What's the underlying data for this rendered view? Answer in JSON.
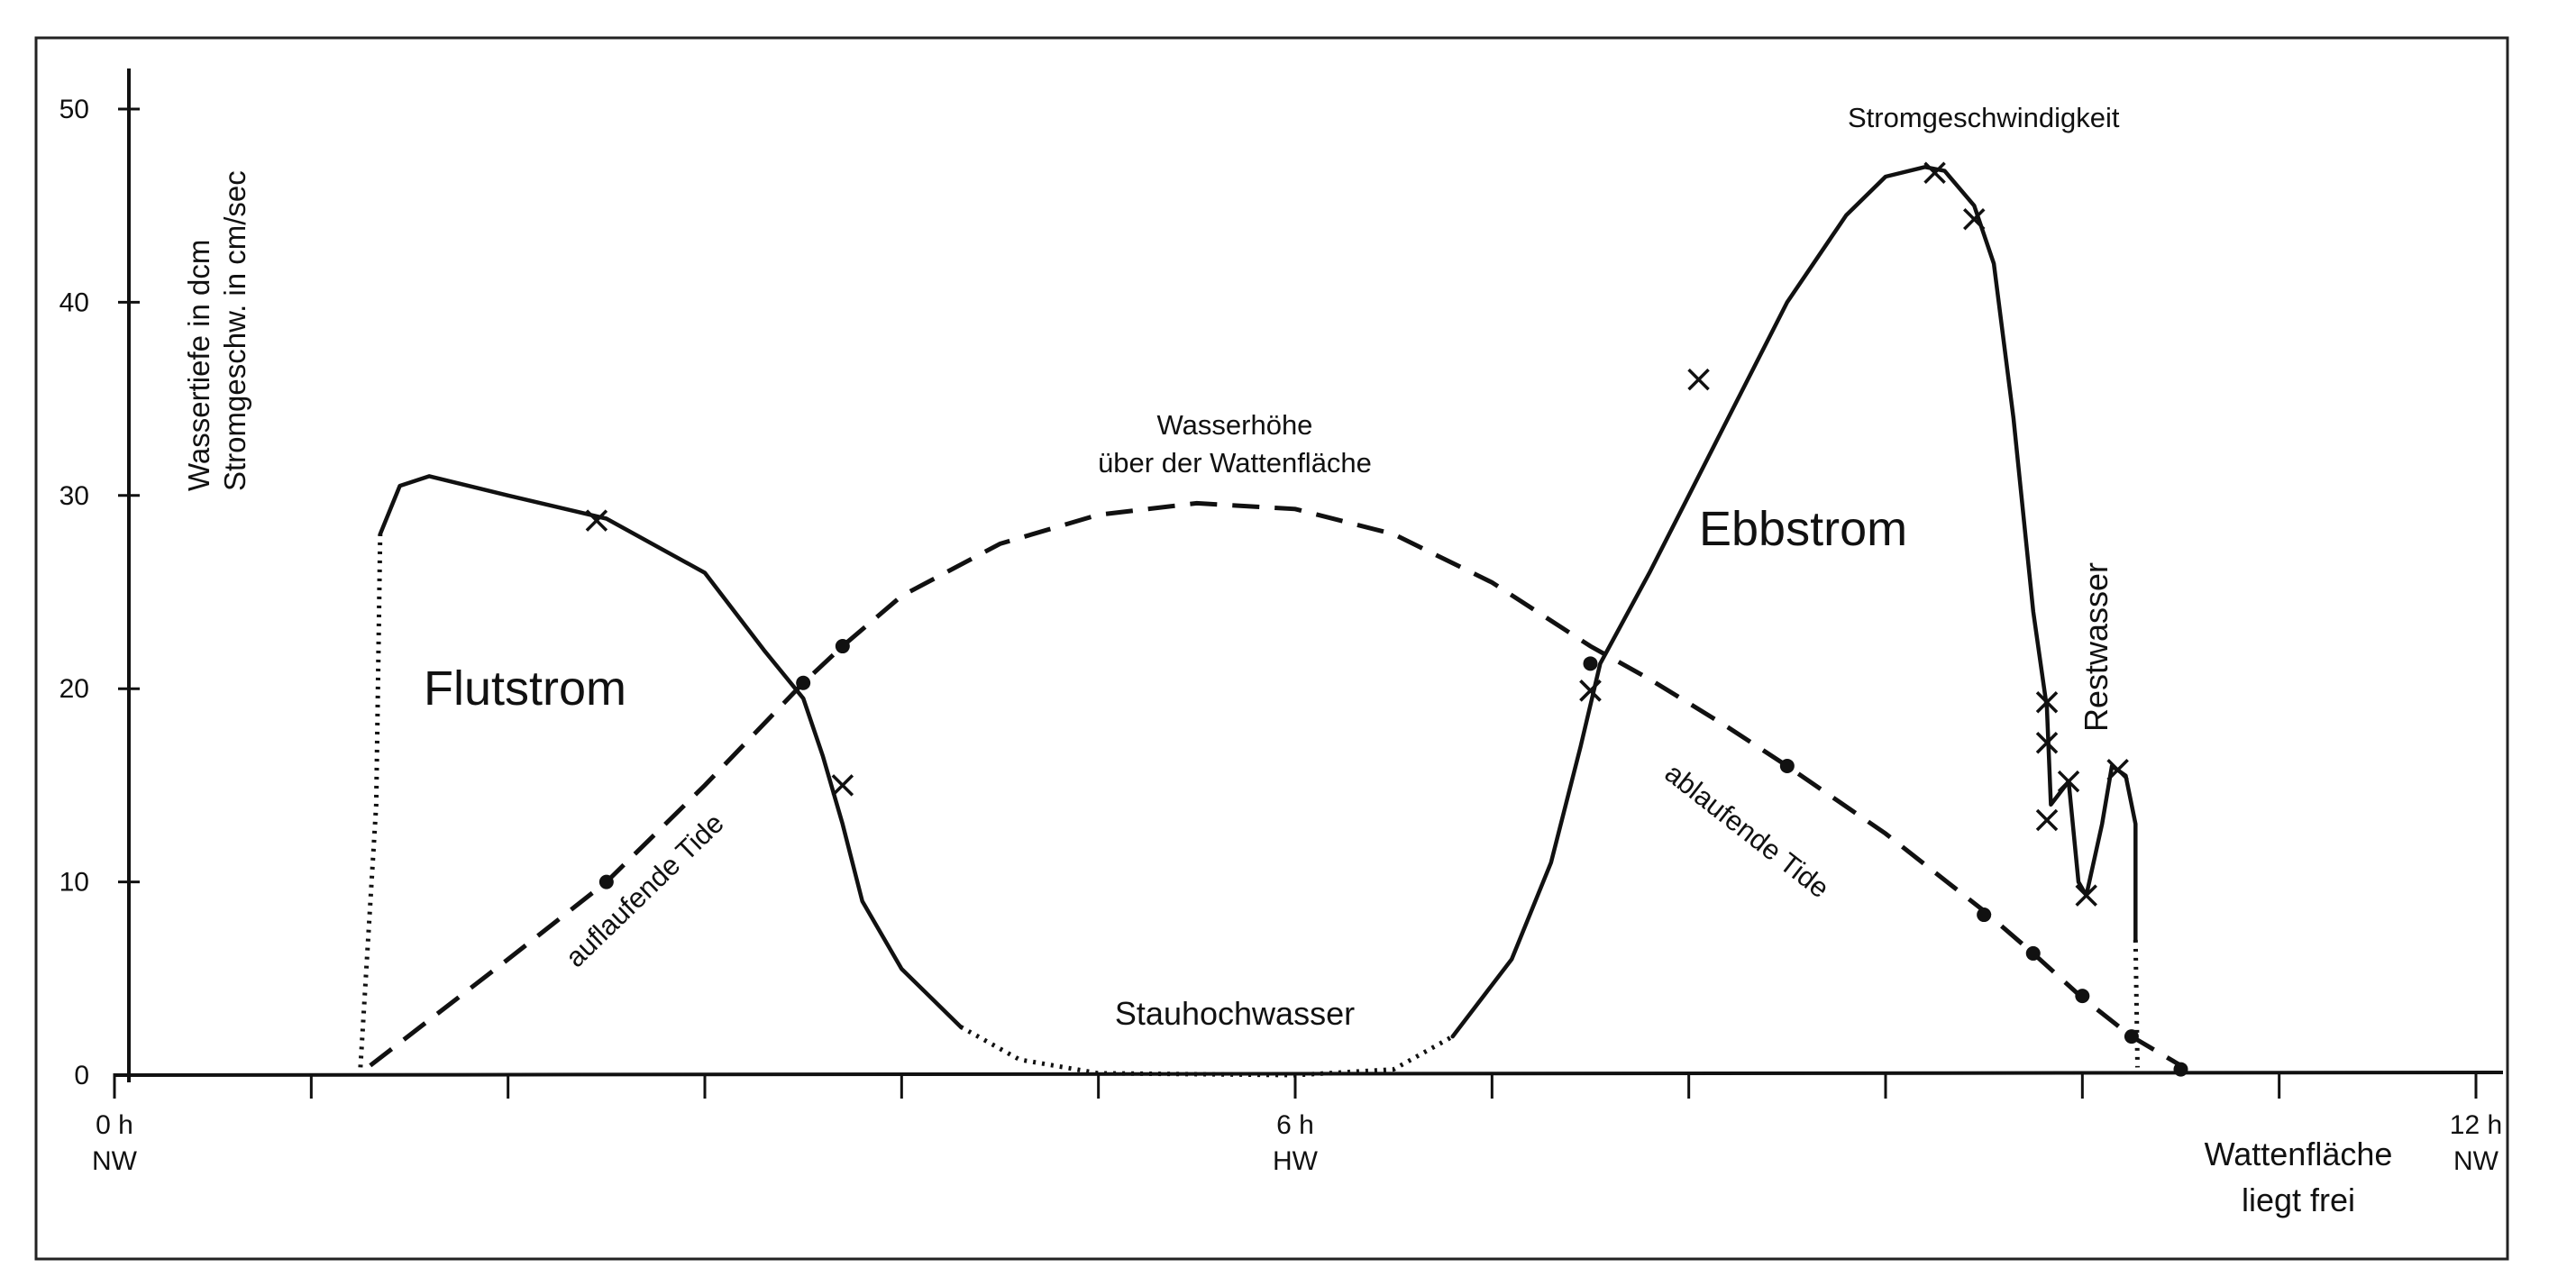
{
  "chart_data": {
    "type": "line",
    "title": "",
    "xlabel": "",
    "ylabel_lines": [
      "Wassertiefe in dcm",
      "Stromgeschw. in cm/sec"
    ],
    "xlim": [
      0,
      12
    ],
    "ylim": [
      0,
      50
    ],
    "yticks": [
      0,
      10,
      20,
      30,
      40,
      50
    ],
    "xticks": [
      0,
      1,
      2,
      3,
      4,
      5,
      6,
      7,
      8,
      9,
      10,
      11,
      12
    ],
    "xtick_labels": [
      {
        "x": 0,
        "lines": [
          "0 h",
          "NW"
        ]
      },
      {
        "x": 6,
        "lines": [
          "6 h",
          "HW"
        ]
      },
      {
        "x": 12,
        "lines": [
          "12 h",
          "NW"
        ]
      }
    ],
    "grid": false,
    "series": [
      {
        "name": "Wasserhöhe über der Wattenfläche",
        "style": "dashed",
        "points": [
          [
            1.3,
            0.5
          ],
          [
            2.0,
            6.0
          ],
          [
            2.5,
            10.0
          ],
          [
            3.0,
            15.0
          ],
          [
            3.5,
            20.3
          ],
          [
            3.7,
            22.2
          ],
          [
            4.0,
            24.8
          ],
          [
            4.5,
            27.5
          ],
          [
            5.0,
            29.0
          ],
          [
            5.5,
            29.6
          ],
          [
            6.0,
            29.3
          ],
          [
            6.5,
            28.0
          ],
          [
            7.0,
            25.5
          ],
          [
            7.5,
            22.2
          ],
          [
            7.8,
            20.5
          ],
          [
            8.2,
            18.0
          ],
          [
            8.5,
            16.0
          ],
          [
            9.0,
            12.5
          ],
          [
            9.5,
            8.5
          ],
          [
            9.75,
            6.3
          ],
          [
            10.0,
            4.0
          ],
          [
            10.25,
            2.0
          ],
          [
            10.5,
            0.5
          ]
        ],
        "markers": {
          "dot": [
            [
              2.5,
              10.0
            ],
            [
              3.5,
              20.3
            ],
            [
              3.7,
              22.2
            ],
            [
              7.5,
              21.3
            ],
            [
              8.5,
              16.0
            ],
            [
              9.5,
              8.3
            ],
            [
              9.75,
              6.3
            ],
            [
              10.0,
              4.1
            ],
            [
              10.25,
              2.0
            ],
            [
              10.5,
              0.3
            ]
          ],
          "x": [
            [
              7.5,
              19.9
            ]
          ]
        }
      },
      {
        "name": "Stromgeschwindigkeit",
        "style": "solid",
        "points": [
          [
            1.35,
            28.0
          ],
          [
            1.45,
            30.5
          ],
          [
            1.6,
            31.0
          ],
          [
            2.0,
            30.0
          ],
          [
            2.5,
            28.8
          ],
          [
            3.0,
            26.0
          ],
          [
            3.3,
            22.0
          ],
          [
            3.5,
            19.5
          ],
          [
            3.6,
            16.5
          ],
          [
            3.7,
            13.0
          ],
          [
            3.8,
            9.0
          ],
          [
            4.0,
            5.5
          ],
          [
            4.3,
            2.5
          ],
          [
            4.6,
            0.8
          ],
          [
            5.0,
            0.1
          ],
          [
            6.0,
            0.0
          ],
          [
            6.5,
            0.3
          ],
          [
            6.8,
            2.0
          ],
          [
            7.1,
            6.0
          ],
          [
            7.3,
            11.0
          ],
          [
            7.45,
            17.0
          ],
          [
            7.55,
            21.3
          ],
          [
            7.8,
            26.0
          ],
          [
            8.0,
            30.0
          ],
          [
            8.2,
            34.0
          ],
          [
            8.5,
            40.0
          ],
          [
            8.8,
            44.5
          ],
          [
            9.0,
            46.5
          ],
          [
            9.2,
            47.0
          ],
          [
            9.3,
            46.8
          ],
          [
            9.45,
            45.0
          ],
          [
            9.55,
            42.0
          ],
          [
            9.65,
            34.0
          ],
          [
            9.75,
            24.0
          ],
          [
            9.82,
            19.0
          ],
          [
            9.84,
            14.0
          ],
          [
            9.93,
            15.2
          ],
          [
            9.98,
            10.0
          ],
          [
            10.02,
            9.3
          ],
          [
            10.1,
            13.0
          ],
          [
            10.15,
            16.0
          ],
          [
            10.22,
            15.5
          ],
          [
            10.27,
            13.0
          ],
          [
            10.27,
            7.0
          ]
        ],
        "markers": {
          "x": [
            [
              2.45,
              28.7
            ],
            [
              3.7,
              15.0
            ],
            [
              7.5,
              19.9
            ],
            [
              8.05,
              36.0
            ],
            [
              9.25,
              46.7
            ],
            [
              9.45,
              44.3
            ],
            [
              9.82,
              19.3
            ],
            [
              9.82,
              17.2
            ],
            [
              9.82,
              13.2
            ],
            [
              9.93,
              15.2
            ],
            [
              10.02,
              9.3
            ],
            [
              10.18,
              15.8
            ]
          ]
        }
      }
    ],
    "annotations": {
      "flutstrom": "Flutstrom",
      "ebbstrom": "Ebbstrom",
      "stromgeschwindigkeit": "Stromgeschwindigkeit",
      "wasserhoehe_line1": "Wasserhöhe",
      "wasserhoehe_line2": "über der Wattenfläche",
      "auflaufende_tide": "auflaufende Tide",
      "ablaufende_tide": "ablaufende Tide",
      "stauhochwasser": "Stauhochwasser",
      "restwasser": "Restwasser",
      "wattenflaeche_line1": "Wattenfläche",
      "wattenflaeche_line2": "liegt frei"
    }
  }
}
